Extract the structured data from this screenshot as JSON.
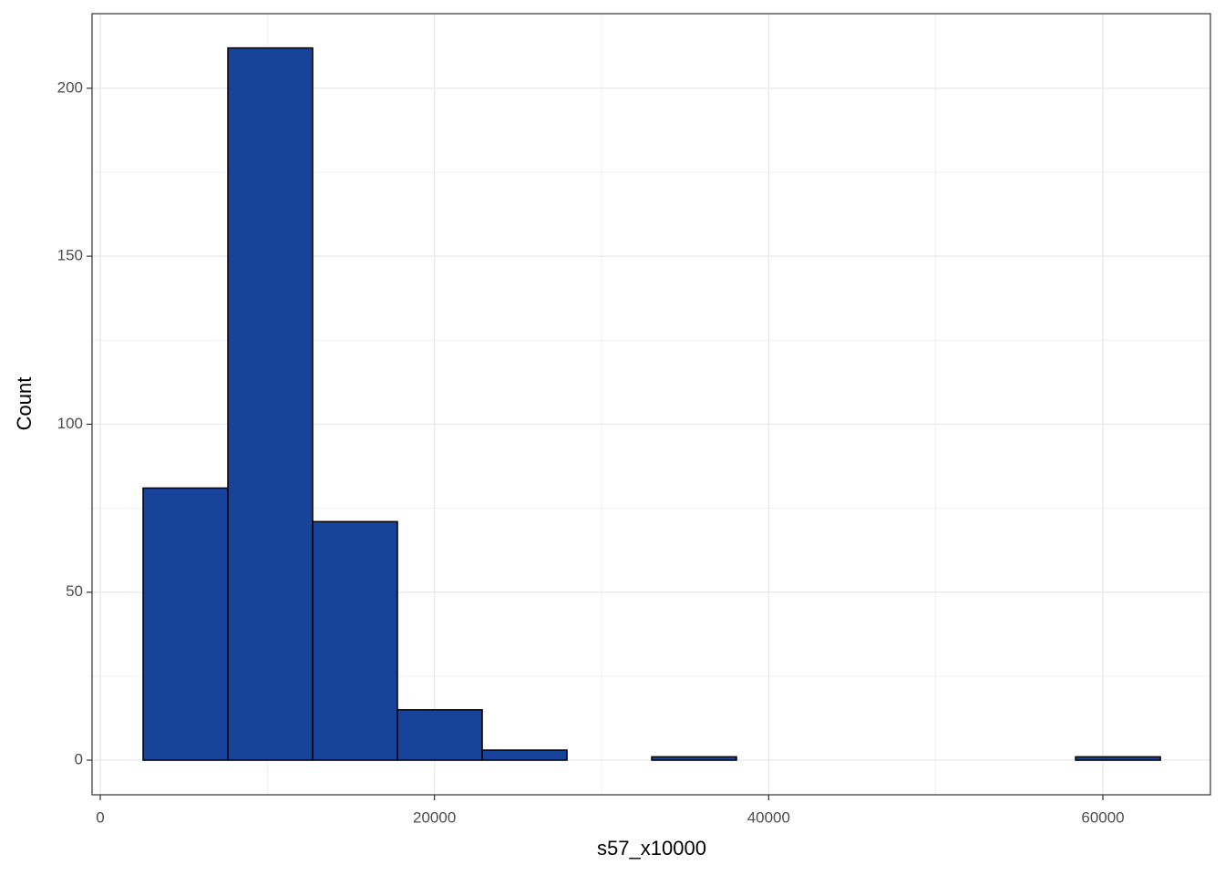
{
  "chart_data": {
    "type": "histogram",
    "x_label": "s57_x10000",
    "y_label": "Count",
    "bins": [
      2564,
      7637,
      12710,
      17783,
      22856,
      27929,
      33002,
      38075,
      43148,
      48221,
      53294,
      58367,
      63440
    ],
    "values": [
      81,
      212,
      71,
      15,
      3,
      0,
      1,
      0,
      0,
      0,
      0,
      1
    ],
    "color": "#17439b",
    "edge_color": "#000000",
    "xlim": [
      -491,
      66436
    ],
    "ylim": [
      -10.3,
      222.2
    ],
    "xticks": [
      0,
      20000,
      40000,
      60000
    ],
    "yticks": [
      0,
      50,
      100,
      150,
      200
    ],
    "grid": true
  }
}
